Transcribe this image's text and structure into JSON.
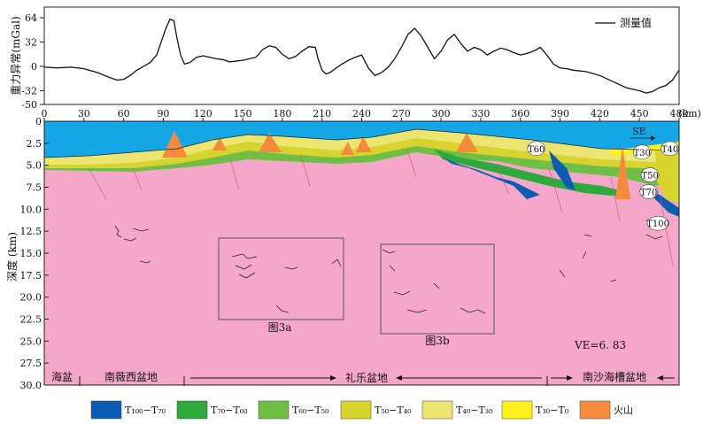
{
  "gravity": {
    "ylabel": "重力异常(mGal)",
    "yticks": [
      64,
      32,
      0,
      -32,
      -50
    ],
    "legend": "测量值",
    "x": [
      0,
      10,
      20,
      30,
      40,
      50,
      55,
      60,
      65,
      70,
      75,
      80,
      85,
      88,
      92,
      95,
      98,
      100,
      103,
      106,
      110,
      115,
      120,
      130,
      135,
      140,
      150,
      160,
      165,
      170,
      175,
      180,
      185,
      190,
      195,
      200,
      205,
      207,
      210,
      213,
      216,
      220,
      225,
      230,
      235,
      240,
      245,
      250,
      255,
      260,
      265,
      270,
      275,
      280,
      285,
      290,
      295,
      300,
      305,
      310,
      315,
      320,
      325,
      330,
      335,
      340,
      345,
      350,
      355,
      360,
      365,
      370,
      375,
      380,
      385,
      390,
      395,
      400,
      410,
      420,
      430,
      440,
      450,
      455,
      460,
      465,
      470,
      475,
      480
    ],
    "values": [
      -1,
      -2,
      -1,
      -3,
      -8,
      -15,
      -18,
      -17,
      -12,
      -5,
      0,
      5,
      15,
      30,
      50,
      62,
      60,
      40,
      15,
      3,
      5,
      12,
      14,
      10,
      9,
      6,
      8,
      12,
      22,
      27,
      25,
      16,
      10,
      13,
      20,
      26,
      25,
      10,
      -5,
      -10,
      -8,
      -3,
      3,
      8,
      12,
      15,
      -2,
      -12,
      -8,
      -1,
      10,
      25,
      42,
      50,
      40,
      25,
      10,
      20,
      35,
      42,
      30,
      20,
      25,
      22,
      15,
      20,
      24,
      22,
      18,
      15,
      17,
      20,
      25,
      15,
      3,
      -2,
      -3,
      -5,
      -7,
      -12,
      -20,
      -28,
      -32,
      -35,
      -33,
      -28,
      -25,
      -18,
      -5
    ]
  },
  "section": {
    "ylabel": "深度 (km)",
    "xunit": "(km)",
    "xticks": [
      0,
      30,
      60,
      90,
      120,
      150,
      180,
      210,
      240,
      270,
      300,
      330,
      360,
      390,
      420,
      450,
      480
    ],
    "yticks": [
      "0",
      "2.5",
      "5.0",
      "7.5",
      "10.0",
      "12.5",
      "15.0",
      "17.5",
      "20.0",
      "22.5",
      "25.0",
      "27.5",
      "30.0"
    ],
    "horizons": [
      {
        "label": "T60",
        "x": 372,
        "y": 3.1
      },
      {
        "label": "T30",
        "x": 452,
        "y": 3.5
      },
      {
        "label": "T40",
        "x": 473,
        "y": 3.1
      },
      {
        "label": "T50",
        "x": 458,
        "y": 6.1
      },
      {
        "label": "T70",
        "x": 457,
        "y": 8.0
      },
      {
        "label": "T100",
        "x": 464,
        "y": 11.6
      }
    ],
    "se_label": "SE",
    "ve_label": "VE=6. 83",
    "box_labels": [
      "图3a",
      "图3b"
    ],
    "basins": {
      "b1": "海盆",
      "b2": "南薇西盆地",
      "b3": "礼乐盆地",
      "b4": "南沙海槽盆地"
    }
  },
  "legend": [
    {
      "label": "T₁₀₀−T₇₀",
      "color": "#0b5cb5"
    },
    {
      "label": "T₇₀−T₆₀",
      "color": "#2eaa3c"
    },
    {
      "label": "T₆₀−T₅₀",
      "color": "#6fbf45"
    },
    {
      "label": "T₅₀−T₄₀",
      "color": "#d8d42e"
    },
    {
      "label": "T₄₀−T₃₀",
      "color": "#ece56f"
    },
    {
      "label": "T₃₀−T₀",
      "color": "#fff21a"
    },
    {
      "label": "火山",
      "color": "#f58a3c"
    }
  ],
  "colors": {
    "water": "#13a7e6",
    "basement": "#f5a7c9",
    "volcano": "#f58a3c"
  }
}
